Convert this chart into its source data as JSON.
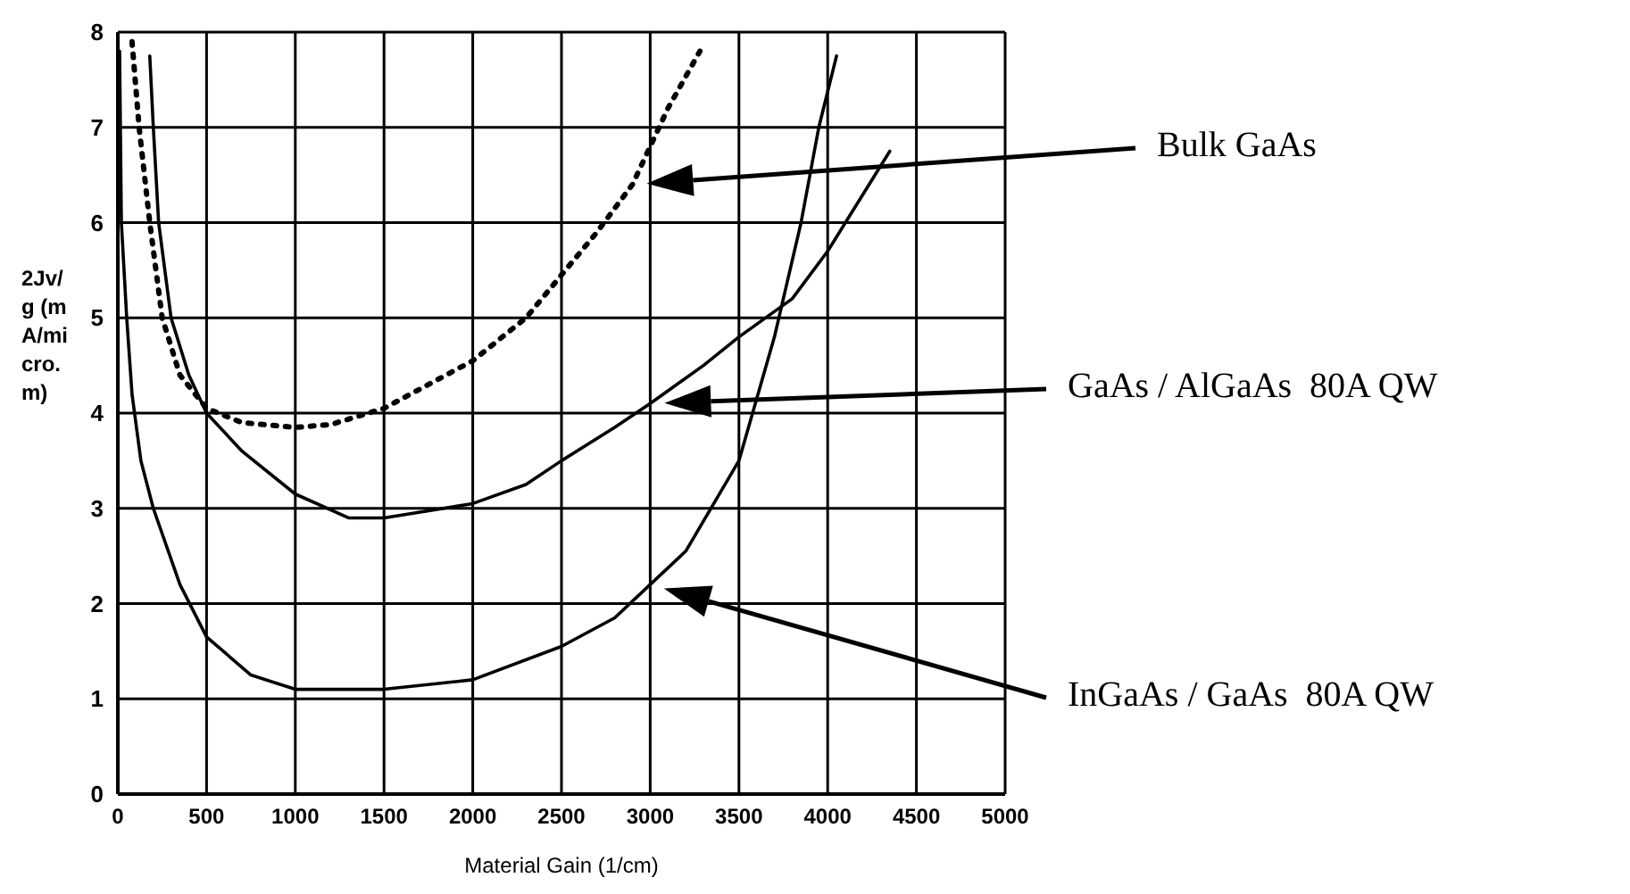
{
  "chart_data": {
    "type": "line",
    "xlabel": "Material Gain (1/cm)",
    "ylabel": "2Jv/g (mA/micro.m)",
    "xlim": [
      0,
      5000
    ],
    "xticks": [
      0,
      500,
      1000,
      1500,
      2000,
      2500,
      3000,
      3500,
      4000,
      4500,
      5000
    ],
    "ylim": [
      0,
      8
    ],
    "yticks": [
      0,
      1,
      2,
      3,
      4,
      5,
      6,
      7,
      8
    ],
    "grid": true,
    "marker": "none",
    "series": [
      {
        "name": "Bulk GaAs",
        "color": "#000000",
        "line_style": "dotted",
        "x": [
          80,
          120,
          180,
          250,
          350,
          500,
          700,
          1000,
          1200,
          1500,
          1800,
          2000,
          2300,
          2500,
          2700,
          2900,
          3000,
          3100,
          3280
        ],
        "values": [
          7.9,
          7,
          6,
          5,
          4.4,
          4.05,
          3.9,
          3.85,
          3.88,
          4.05,
          4.35,
          4.55,
          5.0,
          5.45,
          5.9,
          6.4,
          6.8,
          7.2,
          7.8
        ]
      },
      {
        "name": "GaAs / AlGaAs  80A QW",
        "color": "#000000",
        "line_style": "solid",
        "x": [
          180,
          200,
          230,
          300,
          400,
          500,
          700,
          1000,
          1300,
          1500,
          2000,
          2300,
          2500,
          2800,
          3000,
          3300,
          3500,
          3800,
          4000,
          4200,
          4350
        ],
        "values": [
          7.75,
          7,
          6,
          5,
          4.4,
          4.0,
          3.6,
          3.15,
          2.9,
          2.9,
          3.05,
          3.25,
          3.5,
          3.85,
          4.1,
          4.5,
          4.8,
          5.2,
          5.7,
          6.3,
          6.75
        ]
      },
      {
        "name": "InGaAs / GaAs  80A QW",
        "color": "#000000",
        "line_style": "solid",
        "x": [
          10,
          20,
          50,
          80,
          130,
          200,
          350,
          500,
          750,
          1000,
          1500,
          2000,
          2500,
          2800,
          3000,
          3200,
          3500,
          3700,
          3850,
          3950,
          4050
        ],
        "values": [
          7.8,
          6,
          5,
          4.2,
          3.5,
          3,
          2.2,
          1.65,
          1.25,
          1.1,
          1.1,
          1.2,
          1.55,
          1.85,
          2.2,
          2.55,
          3.5,
          4.8,
          6,
          7,
          7.75
        ]
      }
    ]
  }
}
